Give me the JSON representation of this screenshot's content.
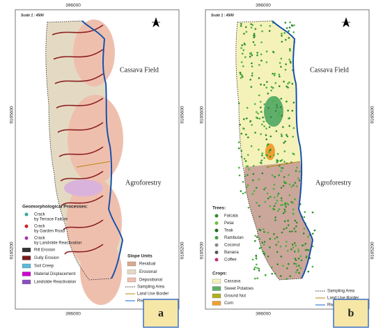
{
  "panels": [
    {
      "label": "a",
      "scale": "Scale 1 : 4500",
      "coords": {
        "top": "396000",
        "bottom": "396000",
        "left_upper": "9165600",
        "left_lower": "9165200",
        "right_upper": "9165600",
        "right_lower": "9165200"
      },
      "land_use": [
        "Cassava Field",
        "Agroforestry"
      ],
      "groups": [
        {
          "title": "Geomorphological Processes:",
          "items": [
            [
              "Crack",
              "by Terrace Failure"
            ],
            [
              "Crack",
              "by Garden Road"
            ],
            [
              "Crack",
              "by Landslide Reactivation"
            ],
            [
              "Rill Erosion"
            ],
            [
              "Gully Erosion"
            ],
            [
              "Soil Creep"
            ],
            [
              "Material Displacement"
            ],
            [
              "Landslide Reactivation"
            ]
          ]
        },
        {
          "title": "Slope Units",
          "items": [
            [
              "Residual"
            ],
            [
              "Erosional"
            ],
            [
              "Depositional"
            ]
          ]
        }
      ],
      "boundaries": [
        "Sampling Area",
        "Land Use Border",
        "River"
      ]
    },
    {
      "label": "b",
      "scale": "Scale 1 : 4500",
      "coords": {
        "top": "396000",
        "bottom": "396000",
        "left_upper": "9165600",
        "left_lower": "9165200",
        "right_upper": "9165600",
        "right_lower": "9165200"
      },
      "land_use": [
        "Cassava Field",
        "Agroforestry"
      ],
      "groups": [
        {
          "title": "Trees:",
          "items": [
            [
              "Falcata"
            ],
            [
              "Petai"
            ],
            [
              "Teak"
            ],
            [
              "Rambutan"
            ],
            [
              "Coconut"
            ],
            [
              "Banana"
            ],
            [
              "Coffee"
            ]
          ]
        },
        {
          "title": "Crops:",
          "items": [
            [
              "Cassava"
            ],
            [
              "Sweet Potatoes"
            ],
            [
              "Ground Nut"
            ],
            [
              "Corn"
            ]
          ]
        }
      ],
      "boundaries": [
        "Sampling Area",
        "Land Use Border",
        "River"
      ]
    }
  ]
}
